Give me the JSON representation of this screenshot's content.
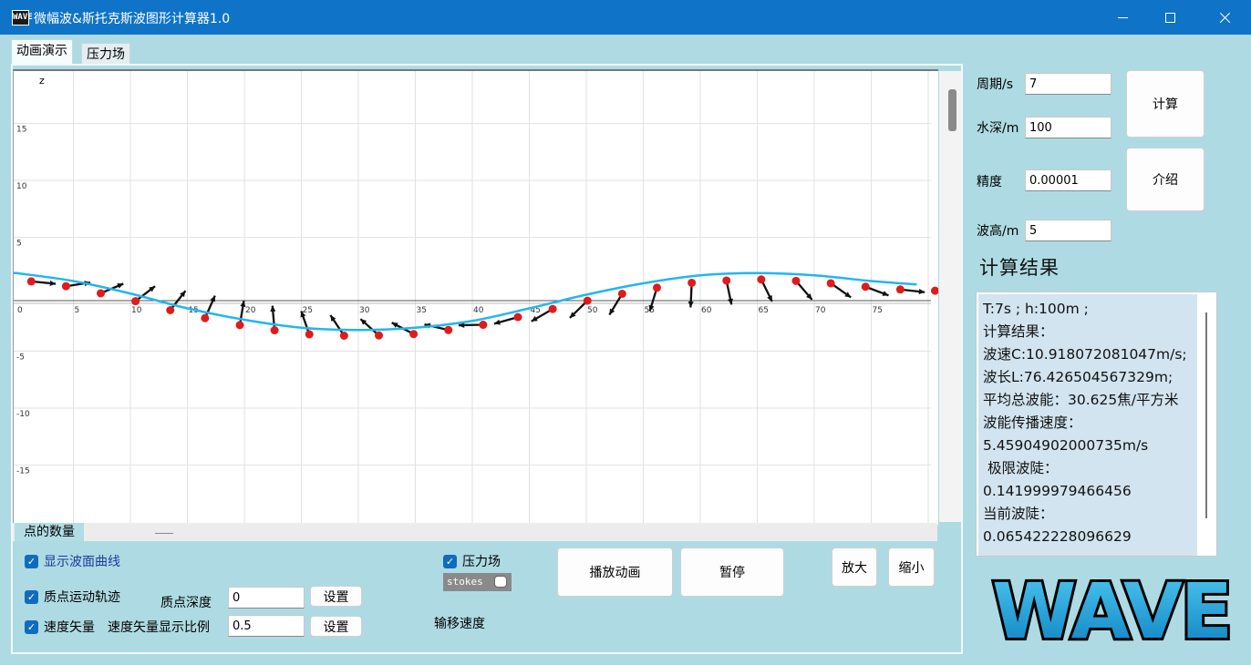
{
  "window": {
    "title": "微幅波&斯托克斯波图形计算器1.0",
    "icon_label": "WAVE"
  },
  "tabs": [
    {
      "label": "动画演示",
      "active": true
    },
    {
      "label": "压力场",
      "active": false
    }
  ],
  "plot": {
    "z_axis_label": "z",
    "y_ticks": [
      "15",
      "10",
      "5",
      "-5",
      "-10",
      "-15"
    ],
    "x_ticks": [
      "0",
      "5",
      "10",
      "15",
      "20",
      "25",
      "30",
      "35",
      "40",
      "45",
      "50",
      "55",
      "60",
      "65",
      "70",
      "75"
    ]
  },
  "chart_data": {
    "type": "line",
    "series": [
      {
        "values_description": "",
        "x": [
          0,
          5,
          10,
          15,
          20,
          25,
          30,
          35,
          40,
          45,
          50,
          55,
          60,
          65,
          70,
          75,
          79
        ],
        "y": [
          2.5,
          1.8,
          0.7,
          -0.6,
          -1.6,
          -2.3,
          -2.5,
          -2.3,
          -1.7,
          -0.6,
          0.6,
          1.6,
          2.3,
          2.5,
          2.3,
          1.8,
          1.5
        ]
      }
    ],
    "xlim": [
      0,
      80
    ],
    "ylim": [
      -19,
      20
    ],
    "grid": true
  },
  "bottom": {
    "point_count_label": "点的数量",
    "show_curve": "显示波面曲线",
    "particle_trajectory": "质点运动轨迹",
    "particle_depth_label": "质点深度",
    "particle_depth_value": "0",
    "set_label": "设置",
    "velocity_vector": "速度矢量",
    "vector_scale_label": "速度矢量显示比例",
    "vector_scale_value": "0.5",
    "pressure_field": "压力场",
    "stokes_label": "stokes",
    "drift_speed_label": "输移速度",
    "play_label": "播放动画",
    "pause_label": "暂停",
    "zoom_in_label": "放大",
    "zoom_out_label": "缩小"
  },
  "params": {
    "period_label": "周期/s",
    "period_value": "7",
    "depth_label": "水深/m",
    "depth_value": "100",
    "precision_label": "精度",
    "precision_value": "0.00001",
    "height_label": "波高/m",
    "height_value": "5",
    "compute_label": "计算",
    "intro_label": "介绍"
  },
  "results": {
    "title": "计算结果",
    "text": "T:7s ; h:100m ;\n计算结果：\n波速C:10.918072081047m/s;\n波长L:76.426504567329m;\n平均总波能：30.625焦/平方米\n波能传播速度：\n5.45904902000735m/s\n 极限波陡：\n0.141999979466456\n当前波陡：\n0.065422228096629"
  },
  "logo_text": "WAVE",
  "colors": {
    "titlebar": "#0f74c7",
    "background": "#aedbe3",
    "curve": "#1fb7f0",
    "point": "#e01b1b",
    "arrow": "#111111"
  }
}
